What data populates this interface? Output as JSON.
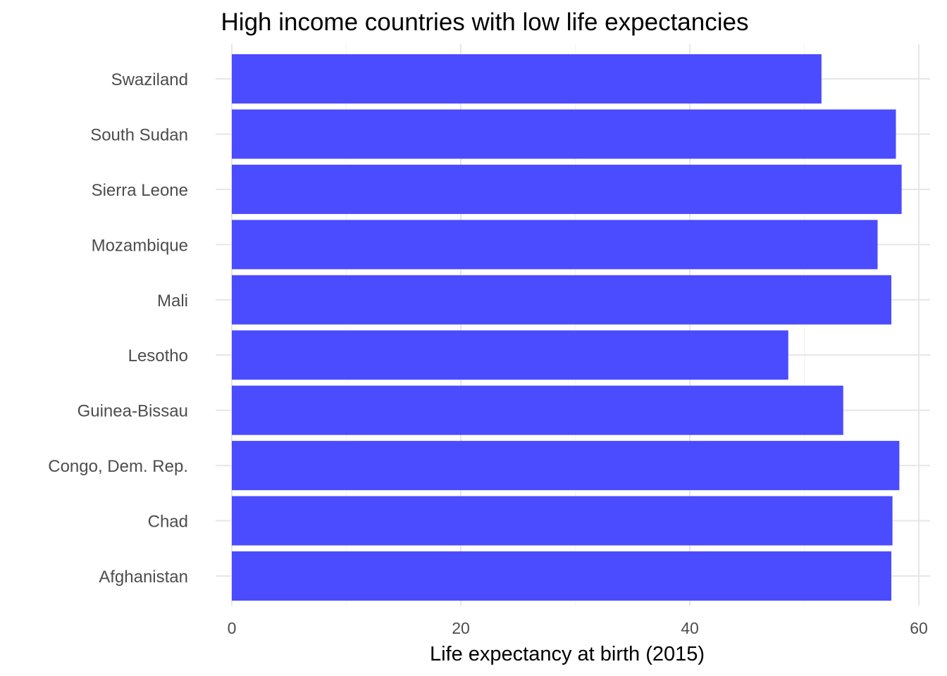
{
  "chart_data": {
    "type": "bar",
    "orientation": "horizontal",
    "title": "High income countries with low life expectancies",
    "xlabel": "Life expectancy at birth (2015)",
    "ylabel": "",
    "xlim": [
      0,
      60
    ],
    "x_ticks": [
      0,
      20,
      40,
      60
    ],
    "grid": true,
    "categories": [
      "Swaziland",
      "South Sudan",
      "Sierra Leone",
      "Mozambique",
      "Mali",
      "Lesotho",
      "Guinea-Bissau",
      "Congo, Dem. Rep.",
      "Chad",
      "Afghanistan"
    ],
    "values": [
      51.5,
      58.0,
      58.5,
      56.4,
      57.6,
      48.6,
      53.4,
      58.3,
      57.7,
      57.6
    ],
    "bar_color": "#4b4bff"
  }
}
